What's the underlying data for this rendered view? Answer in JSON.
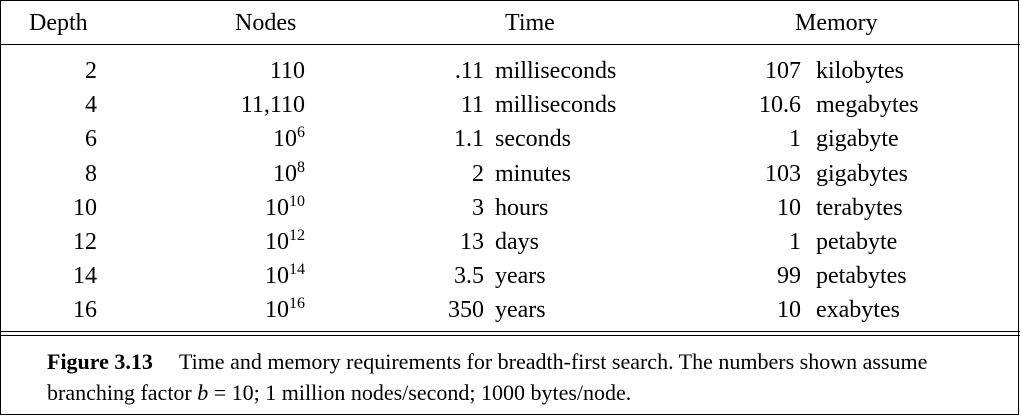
{
  "table": {
    "headers": {
      "depth": "Depth",
      "nodes": "Nodes",
      "time": "Time",
      "memory": "Memory"
    },
    "rows": [
      {
        "depth": "2",
        "nodes_base": "110",
        "nodes_exp": "",
        "time_value": ".11",
        "time_unit": "milliseconds",
        "memory_value": "107",
        "memory_unit": "kilobytes"
      },
      {
        "depth": "4",
        "nodes_base": "11,110",
        "nodes_exp": "",
        "time_value": "11",
        "time_unit": "milliseconds",
        "memory_value": "10.6",
        "memory_unit": "megabytes"
      },
      {
        "depth": "6",
        "nodes_base": "10",
        "nodes_exp": "6",
        "time_value": "1.1",
        "time_unit": "seconds",
        "memory_value": "1",
        "memory_unit": "gigabyte"
      },
      {
        "depth": "8",
        "nodes_base": "10",
        "nodes_exp": "8",
        "time_value": "2",
        "time_unit": "minutes",
        "memory_value": "103",
        "memory_unit": "gigabytes"
      },
      {
        "depth": "10",
        "nodes_base": "10",
        "nodes_exp": "10",
        "time_value": "3",
        "time_unit": "hours",
        "memory_value": "10",
        "memory_unit": "terabytes"
      },
      {
        "depth": "12",
        "nodes_base": "10",
        "nodes_exp": "12",
        "time_value": "13",
        "time_unit": "days",
        "memory_value": "1",
        "memory_unit": "petabyte"
      },
      {
        "depth": "14",
        "nodes_base": "10",
        "nodes_exp": "14",
        "time_value": "3.5",
        "time_unit": "years",
        "memory_value": "99",
        "memory_unit": "petabytes"
      },
      {
        "depth": "16",
        "nodes_base": "10",
        "nodes_exp": "16",
        "time_value": "350",
        "time_unit": "years",
        "memory_value": "10",
        "memory_unit": "exabytes"
      }
    ]
  },
  "caption": {
    "label": "Figure 3.13",
    "text_before_var": "Time and memory requirements for breadth-first search. The numbers shown assume branching factor ",
    "variable": "b",
    "text_after_var": " = 10; 1 million nodes/second; 1000 bytes/node."
  }
}
